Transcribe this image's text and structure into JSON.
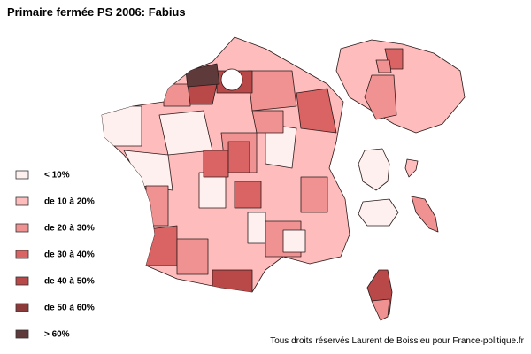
{
  "title": "Primaire fermée PS 2006: Fabius",
  "legend": [
    {
      "label": "< 10%",
      "color": "#fff0f0"
    },
    {
      "label": "de 10 à 20%",
      "color": "#ffbcbc"
    },
    {
      "label": "de 20 à 30%",
      "color": "#f09292"
    },
    {
      "label": "de 30 à 40%",
      "color": "#da6464"
    },
    {
      "label": "de 40 à 50%",
      "color": "#b94848"
    },
    {
      "label": "de 50 à 60%",
      "color": "#8c3a3a"
    },
    {
      "label": "> 60%",
      "color": "#5e3a3a"
    }
  ],
  "credit": "Tous droits réservés Laurent de Boissieu pour France-politique.fr"
}
